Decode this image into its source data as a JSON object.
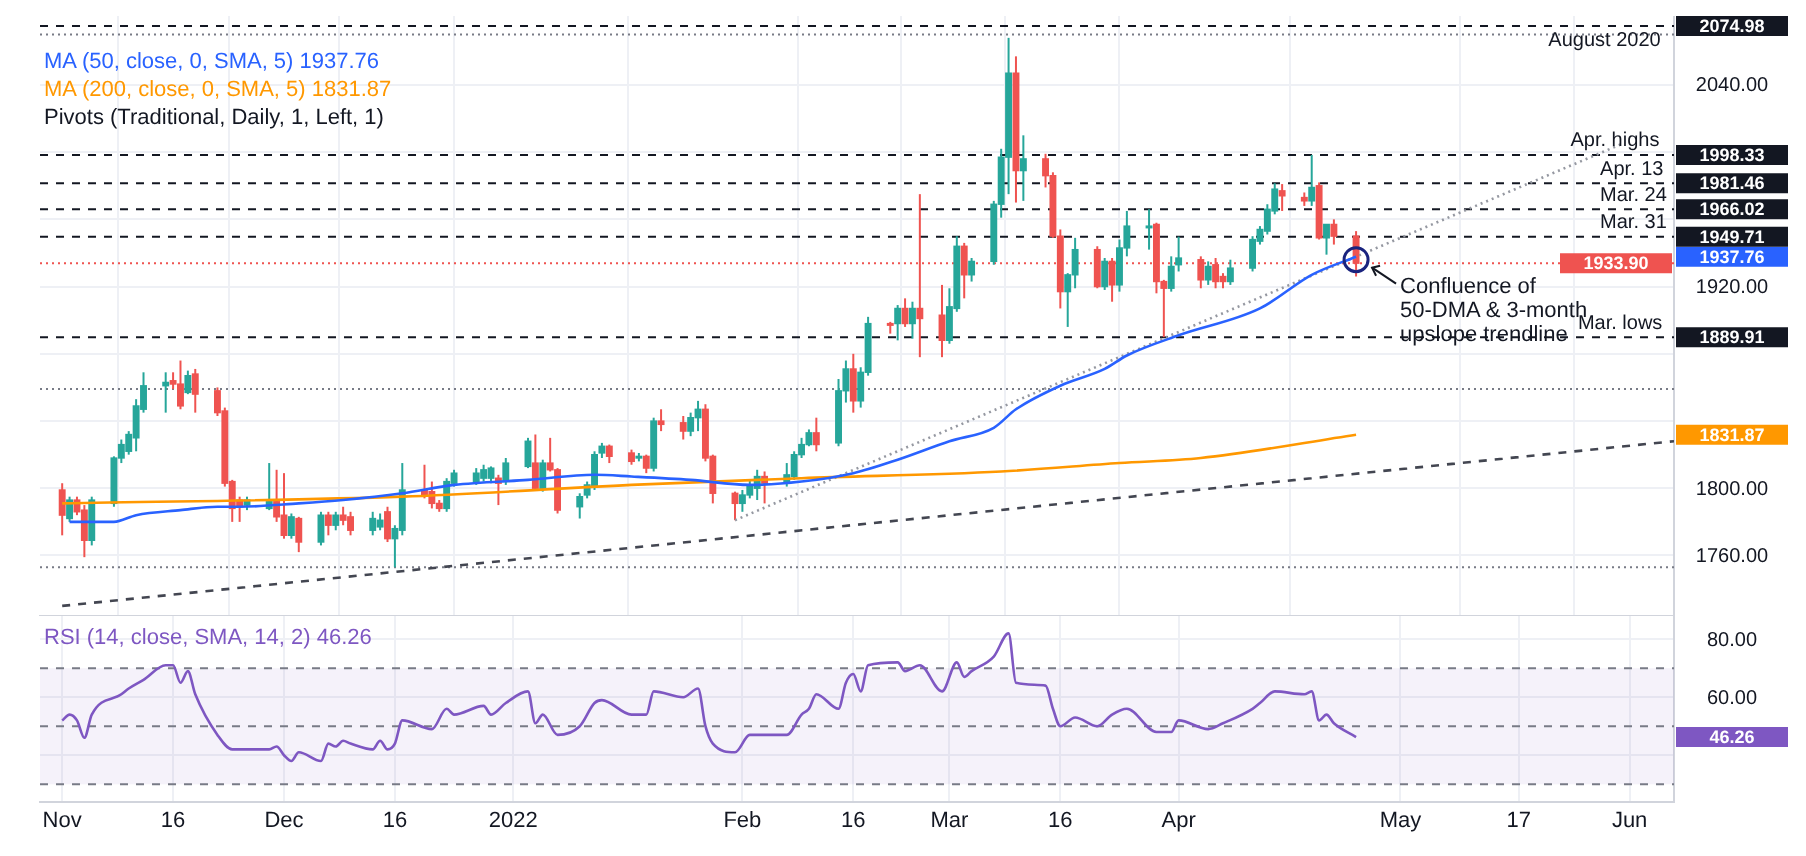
{
  "chart_data": [
    {
      "type": "candlestick",
      "legend": "top left",
      "grid": true,
      "tick_labels": "y",
      "x": [
        "2021-11-01",
        "2021-11-02",
        "2021-11-03",
        "2021-11-04",
        "2021-11-05",
        "2021-11-08",
        "2021-11-09",
        "2021-11-10",
        "2021-11-11",
        "2021-11-12",
        "2021-11-15",
        "2021-11-16",
        "2021-11-17",
        "2021-11-18",
        "2021-11-19",
        "2021-11-22",
        "2021-11-23",
        "2021-11-24",
        "2021-11-25",
        "2021-11-26",
        "2021-11-29",
        "2021-11-30",
        "2021-12-01",
        "2021-12-02",
        "2021-12-03",
        "2021-12-06",
        "2021-12-07",
        "2021-12-08",
        "2021-12-09",
        "2021-12-10",
        "2021-12-13",
        "2021-12-14",
        "2021-12-15",
        "2021-12-16",
        "2021-12-17",
        "2021-12-20",
        "2021-12-21",
        "2021-12-22",
        "2021-12-23",
        "2021-12-24",
        "2021-12-27",
        "2021-12-28",
        "2021-12-29",
        "2021-12-30",
        "2021-12-31",
        "2022-01-03",
        "2022-01-04",
        "2022-01-05",
        "2022-01-06",
        "2022-01-07",
        "2022-01-10",
        "2022-01-11",
        "2022-01-12",
        "2022-01-13",
        "2022-01-14",
        "2022-01-17",
        "2022-01-18",
        "2022-01-19",
        "2022-01-20",
        "2022-01-21",
        "2022-01-24",
        "2022-01-25",
        "2022-01-26",
        "2022-01-27",
        "2022-01-28",
        "2022-01-31",
        "2022-02-01",
        "2022-02-02",
        "2022-02-03",
        "2022-02-04",
        "2022-02-07",
        "2022-02-08",
        "2022-02-09",
        "2022-02-10",
        "2022-02-11",
        "2022-02-14",
        "2022-02-15",
        "2022-02-16",
        "2022-02-17",
        "2022-02-18",
        "2022-02-21",
        "2022-02-22",
        "2022-02-23",
        "2022-02-24",
        "2022-02-25",
        "2022-02-28",
        "2022-03-01",
        "2022-03-02",
        "2022-03-03",
        "2022-03-04",
        "2022-03-07",
        "2022-03-08",
        "2022-03-09",
        "2022-03-10",
        "2022-03-11",
        "2022-03-14",
        "2022-03-15",
        "2022-03-16",
        "2022-03-17",
        "2022-03-18",
        "2022-03-21",
        "2022-03-22",
        "2022-03-23",
        "2022-03-24",
        "2022-03-25",
        "2022-03-28",
        "2022-03-29",
        "2022-03-30",
        "2022-03-31",
        "2022-04-01",
        "2022-04-04",
        "2022-04-05",
        "2022-04-06",
        "2022-04-07",
        "2022-04-08",
        "2022-04-11",
        "2022-04-12",
        "2022-04-13",
        "2022-04-14",
        "2022-04-15",
        "2022-04-18",
        "2022-04-19",
        "2022-04-20",
        "2022-04-21",
        "2022-04-22",
        "2022-04-25"
      ],
      "ohlc": [
        [
          1799,
          1803,
          1772,
          1784
        ],
        [
          1782,
          1795,
          1780,
          1793
        ],
        [
          1793,
          1795,
          1784,
          1786
        ],
        [
          1787,
          1790,
          1759,
          1769
        ],
        [
          1769,
          1795,
          1766,
          1793
        ],
        [
          1791,
          1819,
          1789,
          1818
        ],
        [
          1818,
          1829,
          1815,
          1826
        ],
        [
          1822,
          1834,
          1820,
          1832
        ],
        [
          1830,
          1853,
          1822,
          1849
        ],
        [
          1847,
          1869,
          1845,
          1861
        ],
        [
          1861,
          1869,
          1845,
          1863
        ],
        [
          1864,
          1869,
          1859,
          1862
        ],
        [
          1862,
          1876,
          1847,
          1849
        ],
        [
          1857,
          1870,
          1856,
          1867
        ],
        [
          1868,
          1871,
          1845,
          1856
        ],
        [
          1858,
          1860,
          1843,
          1845
        ],
        [
          1846,
          1848,
          1801,
          1803
        ],
        [
          1804,
          1805,
          1780,
          1788
        ],
        [
          1793,
          1795,
          1780,
          1789
        ],
        [
          1790,
          1795,
          1787,
          1793
        ],
        [
          1788,
          1815,
          1787,
          1792
        ],
        [
          1792,
          1811,
          1780,
          1783
        ],
        [
          1784,
          1809,
          1770,
          1772
        ],
        [
          1772,
          1785,
          1770,
          1783
        ],
        [
          1782,
          1783,
          1762,
          1768
        ],
        [
          1768,
          1786,
          1766,
          1784
        ],
        [
          1784,
          1786,
          1772,
          1778
        ],
        [
          1778,
          1786,
          1775,
          1784
        ],
        [
          1784,
          1789,
          1778,
          1781
        ],
        [
          1783,
          1786,
          1772,
          1775
        ],
        [
          1775,
          1786,
          1772,
          1782
        ],
        [
          1777,
          1785,
          1775,
          1781
        ],
        [
          1786,
          1789,
          1768,
          1770
        ],
        [
          1770,
          1778,
          1753,
          1776
        ],
        [
          1775,
          1815,
          1772,
          1799
        ],
        [
          1799,
          1814,
          1794,
          1796
        ],
        [
          1798,
          1804,
          1788,
          1791
        ],
        [
          1791,
          1793,
          1786,
          1788
        ],
        [
          1788,
          1806,
          1786,
          1804
        ],
        [
          1803,
          1811,
          1801,
          1809
        ],
        [
          1804,
          1812,
          1802,
          1809
        ],
        [
          1806,
          1814,
          1804,
          1811
        ],
        [
          1806,
          1813,
          1803,
          1812
        ],
        [
          1806,
          1808,
          1790,
          1803
        ],
        [
          1804,
          1818,
          1802,
          1815
        ],
        [
          1813,
          1830,
          1812,
          1828
        ],
        [
          1815,
          1832,
          1799,
          1800
        ],
        [
          1800,
          1817,
          1798,
          1815
        ],
        [
          1815,
          1830,
          1810,
          1811
        ],
        [
          1811,
          1812,
          1785,
          1787
        ],
        [
          1789,
          1797,
          1782,
          1795
        ],
        [
          1796,
          1804,
          1794,
          1802
        ],
        [
          1801,
          1822,
          1799,
          1820
        ],
        [
          1821,
          1827,
          1818,
          1825
        ],
        [
          1825,
          1826,
          1815,
          1819
        ],
        [
          1821,
          1823,
          1814,
          1816
        ],
        [
          1818,
          1821,
          1816,
          1819
        ],
        [
          1819,
          1820,
          1809,
          1812
        ],
        [
          1812,
          1842,
          1810,
          1840
        ],
        [
          1840,
          1847,
          1834,
          1838
        ],
        [
          1839,
          1843,
          1829,
          1834
        ],
        [
          1834,
          1845,
          1831,
          1842
        ],
        [
          1842,
          1852,
          1834,
          1847
        ],
        [
          1847,
          1850,
          1816,
          1818
        ],
        [
          1819,
          1820,
          1791,
          1797
        ],
        [
          1797,
          1798,
          1781,
          1791
        ],
        [
          1791,
          1799,
          1786,
          1796
        ],
        [
          1796,
          1805,
          1794,
          1801
        ],
        [
          1800,
          1811,
          1793,
          1807
        ],
        [
          1807,
          1810,
          1791,
          1803
        ],
        [
          1803,
          1815,
          1801,
          1808
        ],
        [
          1807,
          1822,
          1805,
          1820
        ],
        [
          1820,
          1830,
          1818,
          1826
        ],
        [
          1826,
          1835,
          1825,
          1833
        ],
        [
          1833,
          1842,
          1822,
          1826
        ],
        [
          1827,
          1865,
          1825,
          1858
        ],
        [
          1858,
          1876,
          1851,
          1871
        ],
        [
          1871,
          1880,
          1845,
          1852
        ],
        [
          1852,
          1872,
          1848,
          1869
        ],
        [
          1869,
          1902,
          1867,
          1898
        ],
        [
          1898,
          1899,
          1892,
          1897
        ],
        [
          1898,
          1909,
          1888,
          1907
        ],
        [
          1907,
          1913,
          1896,
          1898
        ],
        [
          1898,
          1911,
          1889,
          1907
        ],
        [
          1907,
          1975,
          1878,
          1901
        ],
        [
          1903,
          1921,
          1878,
          1888
        ],
        [
          1888,
          1919,
          1886,
          1908
        ],
        [
          1907,
          1950,
          1905,
          1944
        ],
        [
          1944,
          1946,
          1913,
          1927
        ],
        [
          1927,
          1937,
          1923,
          1935
        ],
        [
          1935,
          1971,
          1933,
          1969
        ],
        [
          1969,
          2002,
          1961,
          1997
        ],
        [
          1997,
          2068,
          1975,
          2047
        ],
        [
          2047,
          2057,
          1970,
          1989
        ],
        [
          1989,
          2010,
          1971,
          1996
        ],
        [
          1996,
          1999,
          1979,
          1986
        ],
        [
          1986,
          1988,
          1949,
          1950
        ],
        [
          1950,
          1954,
          1907,
          1917
        ],
        [
          1917,
          1928,
          1896,
          1927
        ],
        [
          1927,
          1949,
          1919,
          1942
        ],
        [
          1942,
          1944,
          1919,
          1920
        ],
        [
          1920,
          1937,
          1918,
          1935
        ],
        [
          1935,
          1937,
          1911,
          1921
        ],
        [
          1921,
          1948,
          1917,
          1943
        ],
        [
          1943,
          1965,
          1938,
          1956
        ],
        [
          1955,
          1966.02,
          1942,
          1956
        ],
        [
          1957,
          1958,
          1916,
          1923
        ],
        [
          1923,
          1924,
          1889.91,
          1919
        ],
        [
          1919,
          1938,
          1917,
          1932
        ],
        [
          1933,
          1949.71,
          1929,
          1937
        ],
        [
          1936,
          1938,
          1919,
          1924
        ],
        [
          1924,
          1935,
          1921,
          1932
        ],
        [
          1933,
          1937,
          1919,
          1923
        ],
        [
          1926,
          1928,
          1919,
          1923
        ],
        [
          1923,
          1936,
          1921,
          1931
        ],
        [
          1931,
          1950,
          1929,
          1948
        ],
        [
          1947,
          1956,
          1945,
          1954
        ],
        [
          1953,
          1969,
          1951,
          1966
        ],
        [
          1965,
          1981.46,
          1963,
          1978
        ],
        [
          1977,
          1981,
          1965,
          1974
        ],
        [
          1973,
          1976,
          1968,
          1971
        ],
        [
          1971,
          1998.33,
          1968,
          1979
        ],
        [
          1980,
          1982,
          1948,
          1949
        ],
        [
          1949,
          1957,
          1939,
          1957
        ],
        [
          1957,
          1960,
          1945,
          1950
        ],
        [
          1950,
          1953,
          1926,
          1933.9
        ]
      ],
      "colors": [
        "#ef5350",
        "#26a69a",
        "#ef5350",
        "#ef5350",
        "#26a69a",
        "#26a69a",
        "#26a69a",
        "#26a69a",
        "#26a69a",
        "#26a69a",
        "#26a69a",
        "#ef5350",
        "#ef5350",
        "#26a69a",
        "#ef5350",
        "#ef5350",
        "#ef5350",
        "#ef5350",
        "#ef5350",
        "#26a69a",
        "#26a69a",
        "#ef5350",
        "#ef5350",
        "#26a69a",
        "#ef5350",
        "#26a69a",
        "#ef5350",
        "#26a69a",
        "#ef5350",
        "#ef5350",
        "#26a69a",
        "#26a69a",
        "#ef5350",
        "#26a69a",
        "#26a69a",
        "#ef5350",
        "#ef5350",
        "#ef5350",
        "#26a69a",
        "#26a69a",
        "#26a69a",
        "#26a69a",
        "#26a69a",
        "#ef5350",
        "#26a69a",
        "#26a69a",
        "#ef5350",
        "#26a69a",
        "#ef5350",
        "#ef5350",
        "#26a69a",
        "#26a69a",
        "#26a69a",
        "#26a69a",
        "#ef5350",
        "#ef5350",
        "#26a69a",
        "#ef5350",
        "#26a69a",
        "#ef5350",
        "#ef5350",
        "#26a69a",
        "#26a69a",
        "#ef5350",
        "#ef5350",
        "#ef5350",
        "#26a69a",
        "#26a69a",
        "#26a69a",
        "#ef5350",
        "#26a69a",
        "#26a69a",
        "#26a69a",
        "#26a69a",
        "#ef5350",
        "#26a69a",
        "#26a69a",
        "#ef5350",
        "#26a69a",
        "#26a69a",
        "#ef5350",
        "#26a69a",
        "#ef5350",
        "#26a69a",
        "#ef5350",
        "#ef5350",
        "#26a69a",
        "#26a69a",
        "#ef5350",
        "#26a69a",
        "#26a69a",
        "#26a69a",
        "#26a69a",
        "#ef5350",
        "#26a69a",
        "#ef5350",
        "#ef5350",
        "#ef5350",
        "#26a69a",
        "#26a69a",
        "#ef5350",
        "#26a69a",
        "#ef5350",
        "#26a69a",
        "#26a69a",
        "#26a69a",
        "#ef5350",
        "#ef5350",
        "#26a69a",
        "#26a69a",
        "#ef5350",
        "#26a69a",
        "#ef5350",
        "#ef5350",
        "#26a69a",
        "#26a69a",
        "#26a69a",
        "#26a69a",
        "#26a69a",
        "#ef5350",
        "#ef5350",
        "#26a69a",
        "#ef5350",
        "#26a69a",
        "#ef5350",
        "#ef5350"
      ],
      "series": [
        {
          "type": "line",
          "name": "MA (50, close, 0, SMA, 5) 1937.76",
          "color": "#2962ff",
          "x": [
            "2021-11-02",
            "2021-11-08",
            "2021-11-11",
            "2021-11-17",
            "2021-11-22",
            "2021-11-25",
            "2021-12-03",
            "2021-12-09",
            "2021-12-17",
            "2021-12-24",
            "2022-01-03",
            "2022-01-12",
            "2022-01-17",
            "2022-01-25",
            "2022-02-02",
            "2022-02-09",
            "2022-02-16",
            "2022-02-22",
            "2022-03-01",
            "2022-03-07",
            "2022-03-10",
            "2022-03-16",
            "2022-03-22",
            "2022-03-25",
            "2022-04-01",
            "2022-04-12",
            "2022-04-19",
            "2022-04-25"
          ],
          "values": [
            1780,
            1780,
            1784,
            1787,
            1789,
            1789,
            1791,
            1793,
            1797,
            1802,
            1805,
            1808,
            1807,
            1805,
            1802,
            1804,
            1809,
            1817,
            1828,
            1836,
            1847,
            1861,
            1871,
            1879,
            1891,
            1907,
            1927,
            1937.76
          ]
        },
        {
          "type": "line",
          "name": "MA (200, close, 0, SMA, 5) 1831.87",
          "color": "#ff9800",
          "x": [
            "2021-11-01",
            "2021-12-17",
            "2022-01-17",
            "2022-02-09",
            "2022-03-08",
            "2022-03-24",
            "2022-04-04",
            "2022-04-25"
          ],
          "values": [
            1791,
            1795,
            1802,
            1806,
            1810,
            1815,
            1818,
            1831.87
          ]
        },
        {
          "type": "line",
          "color": "#434651",
          "line_style": "dashed",
          "x": [
            "2021-11-01",
            "2022-06-07"
          ],
          "values": [
            1730,
            1828
          ]
        },
        {
          "type": "line",
          "color": "#9598a1",
          "line_style": "dotted",
          "x": [
            "2022-01-31",
            "2022-05-31"
          ],
          "values": [
            1781,
            2005
          ]
        }
      ],
      "xlim": [
        "2021-10-29",
        "2022-06-07"
      ],
      "xticks": [
        {
          "value": "2021-11-01",
          "label": null
        },
        {
          "value": "2021-11-16",
          "label": null
        },
        {
          "value": "2021-12-01",
          "label": null
        },
        {
          "value": "2021-12-16",
          "label": null
        },
        {
          "value": "2022-01-01",
          "label": null
        },
        {
          "value": "2022-02-01",
          "label": null
        },
        {
          "value": "2022-02-16",
          "label": null
        },
        {
          "value": "2022-03-01",
          "label": null
        },
        {
          "value": "2022-03-16",
          "label": null
        },
        {
          "value": "2022-04-01",
          "label": null
        },
        {
          "value": "2022-05-01",
          "label": null
        },
        {
          "value": "2022-05-17",
          "label": null
        },
        {
          "value": "2022-06-01",
          "label": null
        }
      ],
      "ylim": [
        1724,
        2081
      ],
      "yticks": [
        {
          "value": 1760,
          "label": "1760.00"
        },
        {
          "value": 1800,
          "label": "1800.00"
        },
        {
          "value": 1840,
          "label": null
        },
        {
          "value": 1880,
          "label": null
        },
        {
          "value": 1920,
          "label": "1920.00"
        },
        {
          "value": 1960,
          "label": null
        },
        {
          "value": 2000,
          "label": null
        },
        {
          "value": 2040,
          "label": "2040.00"
        },
        {
          "value": 1937.76,
          "label": "1937.76"
        },
        {
          "value": 1831.87,
          "label": "1831.87"
        }
      ],
      "ref_lines": [
        {
          "axis": "y",
          "value": 2074.98,
          "label": "2074.98",
          "color": "#131722",
          "line_style": "dashed"
        },
        {
          "axis": "y",
          "value": 1998.33,
          "label": "1998.33",
          "color": "#131722",
          "line_style": "dashed"
        },
        {
          "axis": "y",
          "value": 1981.46,
          "label": "1981.46",
          "color": "#131722",
          "line_style": "dashed"
        },
        {
          "axis": "y",
          "value": 1966.02,
          "label": "1966.02",
          "color": "#131722",
          "line_style": "dashed"
        },
        {
          "axis": "y",
          "value": 1949.71,
          "label": "1949.71",
          "color": "#131722",
          "line_style": "dashed"
        },
        {
          "axis": "y",
          "value": 1889.91,
          "label": "1889.91",
          "color": "#131722",
          "line_style": "dashed"
        },
        {
          "axis": "y",
          "value": 1933.9,
          "label": "1933.90",
          "color": "#ef5350",
          "line_style": "dotted"
        },
        {
          "axis": "y",
          "value": 2070,
          "color": "#787b86",
          "line_style": "dotted"
        },
        {
          "axis": "y",
          "value": 1859,
          "color": "#787b86",
          "line_style": "dotted"
        },
        {
          "axis": "y",
          "value": 1753,
          "color": "#787b86",
          "line_style": "dotted"
        }
      ],
      "annotations": [
        "Pivots (Traditional, Daily, 1, Left, 1)",
        {
          "text": "August 2020",
          "x": "2022-05-21",
          "y": 2074.98
        },
        {
          "text": "Apr. highs",
          "x": "2022-05-24",
          "y": 1998.33
        },
        {
          "text": "Apr. 13",
          "x": "2022-05-28",
          "y": 1981.46
        },
        {
          "text": "Mar. 24",
          "x": "2022-05-28",
          "y": 1966.02
        },
        {
          "text": "Mar. 31",
          "x": "2022-05-28",
          "y": 1949.71
        },
        {
          "text": "Mar. lows",
          "x": "2022-05-25",
          "y": 1889.91
        },
        {
          "text": "Confluence of 50-DMA & 3-month upslope trendline",
          "x": "2022-04-25",
          "y": 1936
        }
      ]
    },
    {
      "type": "line",
      "legend": "top left",
      "grid": true,
      "series": [
        {
          "name": "RSI (14, close, SMA, 14, 2) 46.26",
          "color": "#7e57c2",
          "x": [
            "2021-11-01",
            "2021-11-02",
            "2021-11-03",
            "2021-11-04",
            "2021-11-05",
            "2021-11-09",
            "2021-11-10",
            "2021-11-12",
            "2021-11-15",
            "2021-11-16",
            "2021-11-17",
            "2021-11-18",
            "2021-11-19",
            "2021-11-22",
            "2021-11-24",
            "2021-11-29",
            "2021-11-30",
            "2021-12-01",
            "2021-12-02",
            "2021-12-03",
            "2021-12-06",
            "2021-12-07",
            "2021-12-08",
            "2021-12-09",
            "2021-12-10",
            "2021-12-13",
            "2021-12-14",
            "2021-12-15",
            "2021-12-16",
            "2021-12-17",
            "2021-12-21",
            "2021-12-23",
            "2021-12-24",
            "2021-12-28",
            "2021-12-29",
            "2021-12-31",
            "2022-01-03",
            "2022-01-04",
            "2022-01-05",
            "2022-01-07",
            "2022-01-10",
            "2022-01-12",
            "2022-01-13",
            "2022-01-17",
            "2022-01-19",
            "2022-01-20",
            "2022-01-24",
            "2022-01-26",
            "2022-01-27",
            "2022-01-28",
            "2022-01-31",
            "2022-02-02",
            "2022-02-07",
            "2022-02-09",
            "2022-02-10",
            "2022-02-11",
            "2022-02-14",
            "2022-02-15",
            "2022-02-16",
            "2022-02-17",
            "2022-02-18",
            "2022-02-22",
            "2022-02-23",
            "2022-02-25",
            "2022-02-28",
            "2022-03-02",
            "2022-03-03",
            "2022-03-04",
            "2022-03-07",
            "2022-03-09",
            "2022-03-10",
            "2022-03-14",
            "2022-03-15",
            "2022-03-16",
            "2022-03-18",
            "2022-03-21",
            "2022-03-23",
            "2022-03-25",
            "2022-03-29",
            "2022-03-31",
            "2022-04-01",
            "2022-04-05",
            "2022-04-07",
            "2022-04-11",
            "2022-04-12",
            "2022-04-14",
            "2022-04-18",
            "2022-04-19",
            "2022-04-20",
            "2022-04-21",
            "2022-04-22",
            "2022-04-25"
          ],
          "values": [
            52,
            54,
            52,
            46,
            54,
            61,
            63,
            66,
            71,
            71,
            65,
            69,
            61,
            47,
            42,
            42,
            43,
            40,
            38,
            41,
            38,
            44,
            43,
            45,
            44,
            42,
            45,
            42,
            44,
            52,
            49,
            56,
            54,
            57,
            54,
            58,
            62,
            51,
            54,
            47,
            50,
            58,
            59,
            54,
            54,
            62,
            60,
            63,
            50,
            44,
            41,
            47,
            47,
            54,
            56,
            61,
            56,
            65,
            68,
            62,
            71,
            72,
            69,
            71,
            62,
            72,
            67,
            69,
            74,
            82,
            65,
            64,
            56,
            50,
            53,
            50,
            54,
            56,
            48,
            48,
            52,
            49,
            51,
            56,
            58,
            62,
            61,
            62,
            52,
            54,
            51,
            46.26
          ]
        }
      ],
      "xlim": [
        "2021-10-29",
        "2022-06-07"
      ],
      "xticks": [
        {
          "value": "2021-11-01",
          "label": "Nov"
        },
        {
          "value": "2021-11-16",
          "label": "16"
        },
        {
          "value": "2021-12-01",
          "label": "Dec"
        },
        {
          "value": "2021-12-16",
          "label": "16"
        },
        {
          "value": "2022-01-01",
          "label": "2022"
        },
        {
          "value": "2022-02-01",
          "label": "Feb"
        },
        {
          "value": "2022-02-16",
          "label": "16"
        },
        {
          "value": "2022-03-01",
          "label": "Mar"
        },
        {
          "value": "2022-03-16",
          "label": "16"
        },
        {
          "value": "2022-04-01",
          "label": "Apr"
        },
        {
          "value": "2022-05-01",
          "label": "May"
        },
        {
          "value": "2022-05-17",
          "label": "17"
        },
        {
          "value": "2022-06-01",
          "label": "Jun"
        }
      ],
      "ylim": [
        24,
        88
      ],
      "yticks": [
        {
          "value": 40,
          "label": null
        },
        {
          "value": 60,
          "label": "60.00"
        },
        {
          "value": 80,
          "label": "80.00"
        },
        {
          "value": 46.26,
          "label": "46.26"
        }
      ],
      "bands": [
        {
          "axis": "y",
          "from": 30,
          "to": 70,
          "color": "#7e57c2"
        }
      ],
      "ref_lines": [
        {
          "axis": "y",
          "value": 70,
          "color": "#787b86",
          "line_style": "dashed"
        },
        {
          "axis": "y",
          "value": 50,
          "color": "#787b86",
          "line_style": "dashed"
        },
        {
          "axis": "y",
          "value": 30,
          "color": "#787b86",
          "line_style": "dashed"
        }
      ]
    }
  ]
}
